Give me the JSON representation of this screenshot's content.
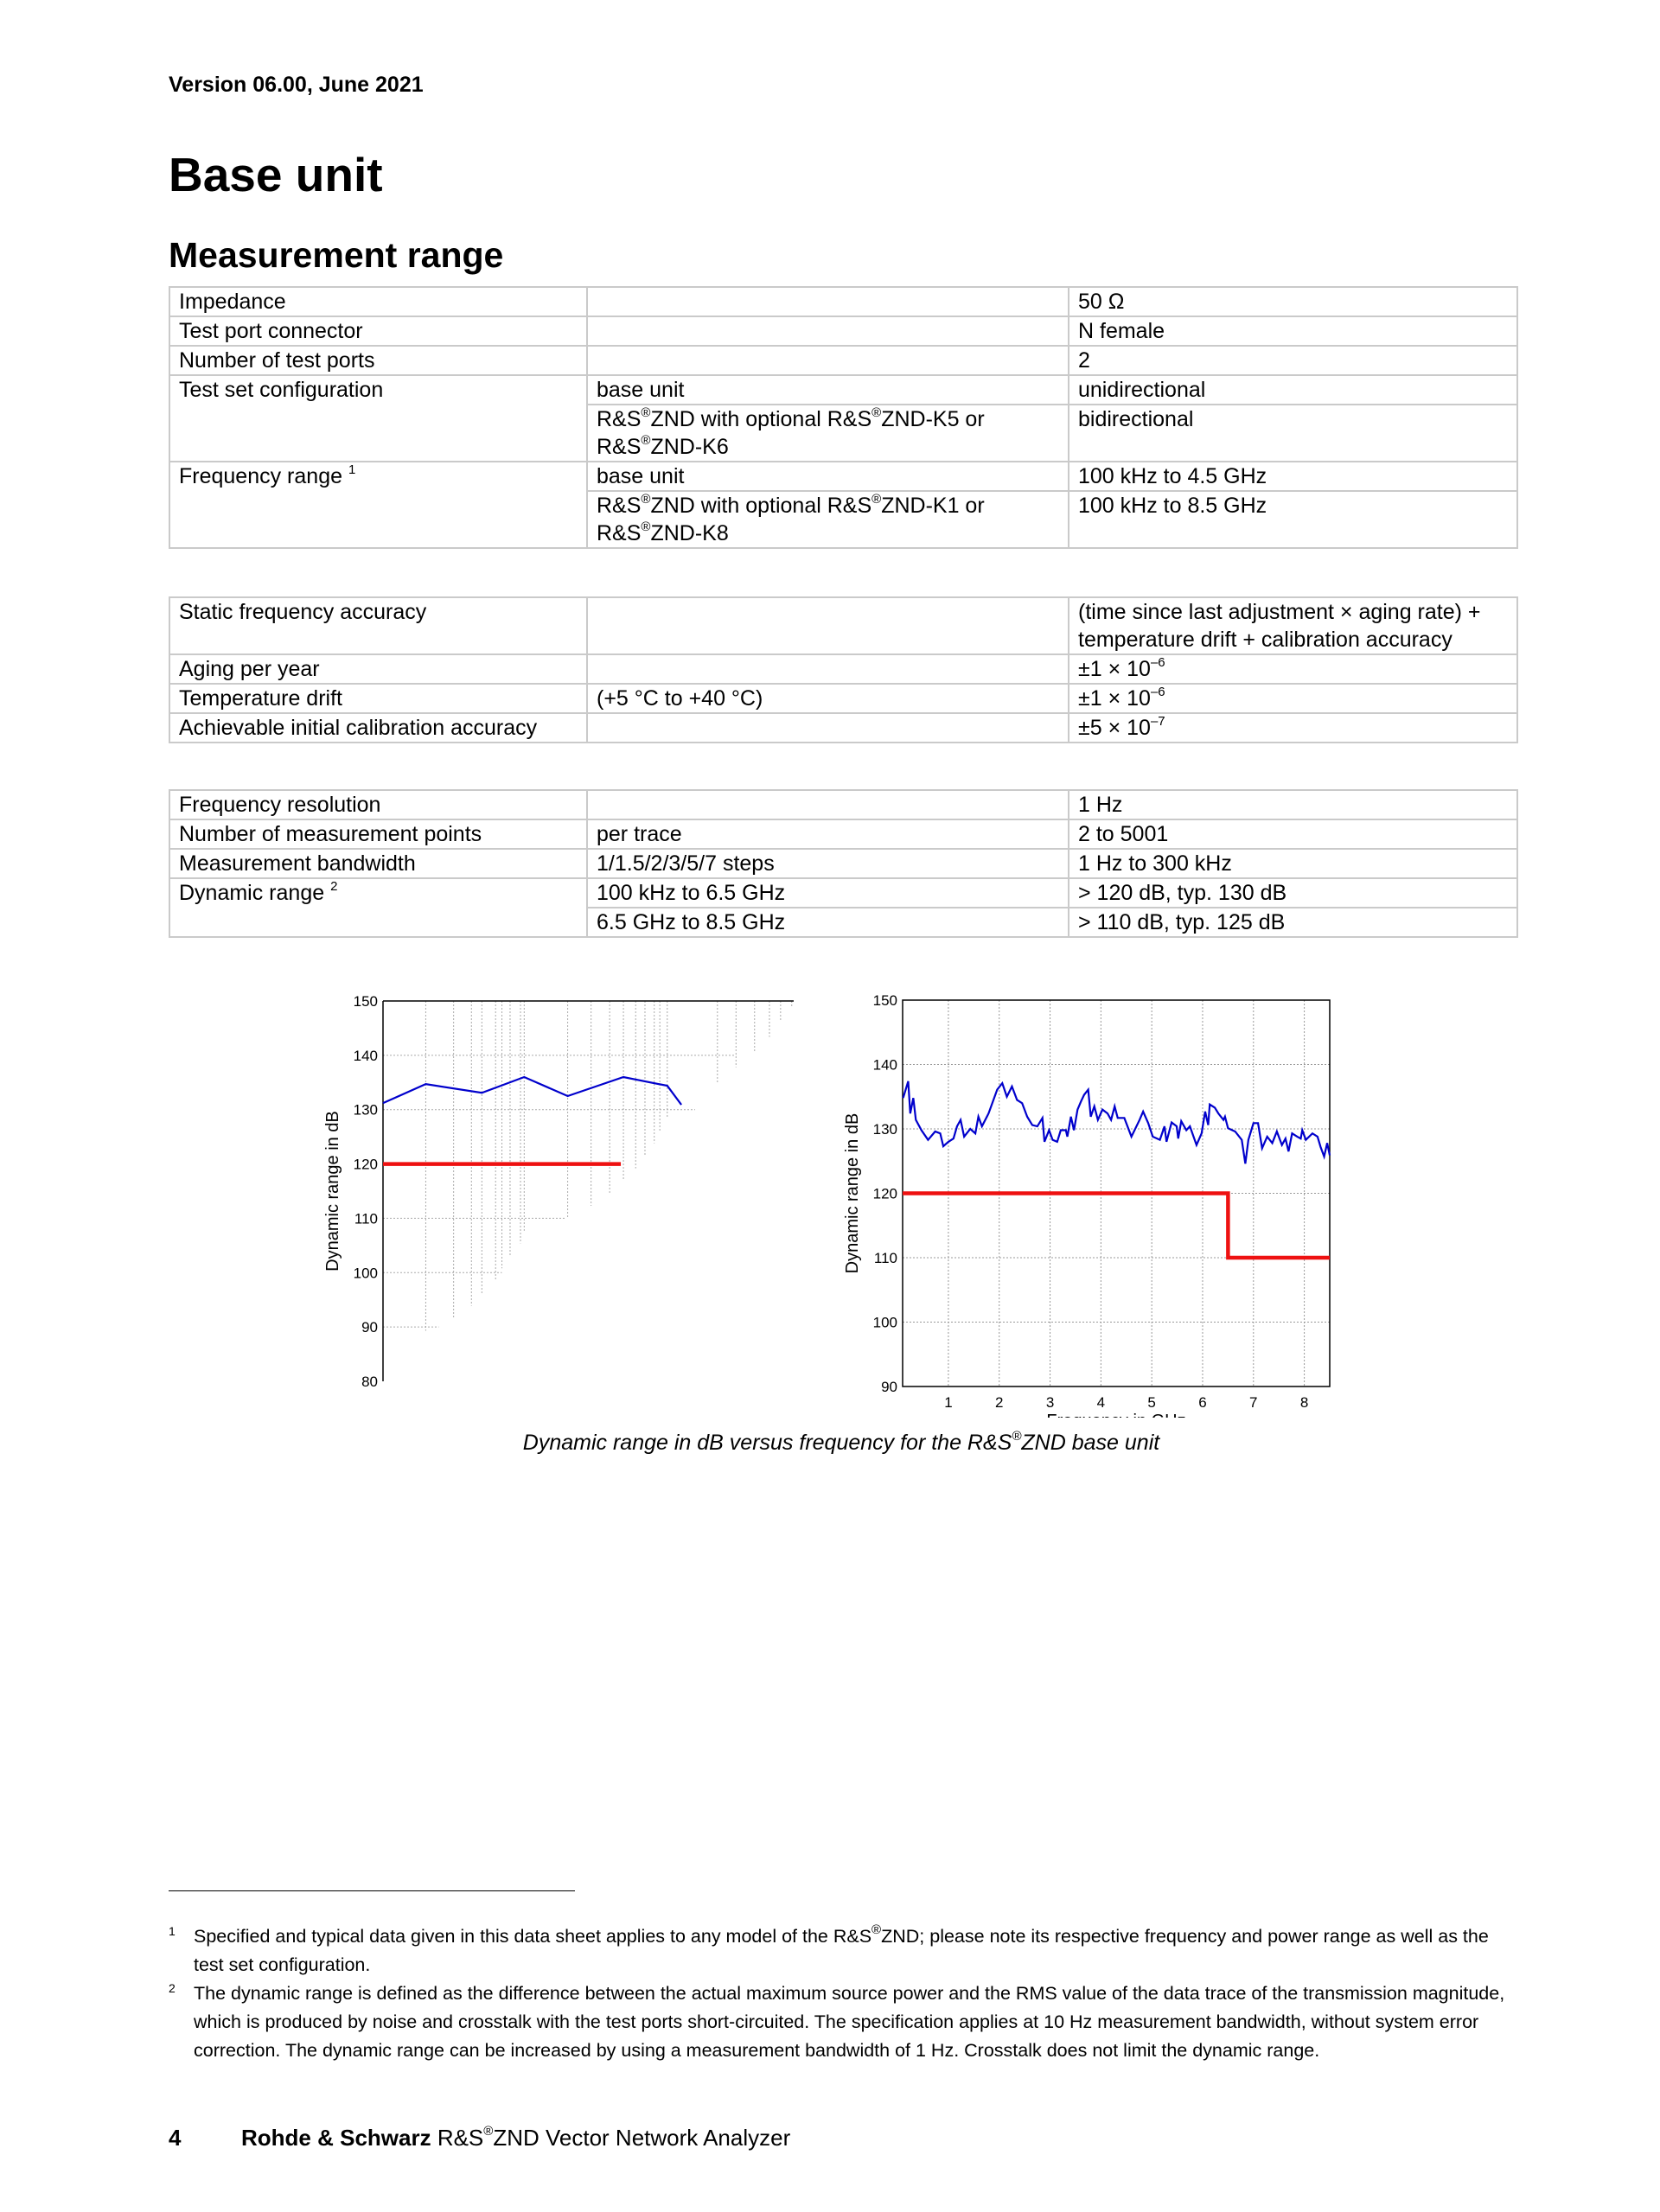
{
  "header": {
    "version": "Version 06.00, June 2021"
  },
  "page_title": "Base unit",
  "section_title": "Measurement range",
  "table1": {
    "rows": [
      {
        "param": "Impedance",
        "cond": "",
        "value": "50 Ω"
      },
      {
        "param": "Test port connector",
        "cond": "",
        "value": "N female"
      },
      {
        "param": "Number of test ports",
        "cond": "",
        "value": "2"
      },
      {
        "param": "Test set configuration",
        "cond": "base unit",
        "value": "unidirectional"
      },
      {
        "param": "",
        "cond": "R&S®ZND with optional R&S®ZND-K5 or R&S®ZND-K6",
        "value": "bidirectional"
      },
      {
        "param": "Frequency range",
        "param_note": "1",
        "cond": "base unit",
        "value": "100 kHz to 4.5 GHz"
      },
      {
        "param": "",
        "cond": "R&S®ZND with optional R&S®ZND-K1 or R&S®ZND-K8",
        "value": "100 kHz to 8.5 GHz"
      }
    ]
  },
  "table2": {
    "rows": [
      {
        "param": "Static frequency accuracy",
        "cond": "",
        "value": "(time since last adjustment × aging rate) + temperature drift + calibration accuracy"
      },
      {
        "param": "Aging per year",
        "cond": "",
        "value": "±1 × 10",
        "exp": "–6"
      },
      {
        "param": "Temperature drift",
        "cond": "(+5 °C to +40 °C)",
        "value": "±1 × 10",
        "exp": "–6"
      },
      {
        "param": "Achievable initial calibration accuracy",
        "cond": "",
        "value": "±5 × 10",
        "exp": "–7"
      }
    ]
  },
  "table3": {
    "rows": [
      {
        "param": "Frequency resolution",
        "cond": "",
        "value": "1 Hz"
      },
      {
        "param": "Number of measurement points",
        "cond": "per trace",
        "value": "2 to 5001"
      },
      {
        "param": "Measurement bandwidth",
        "cond": "1/1.5/2/3/5/7 steps",
        "value": "1 Hz to 300 kHz"
      },
      {
        "param": "Dynamic range",
        "param_note": "2",
        "cond": "100 kHz to 6.5 GHz",
        "value": "> 120 dB, typ. 130 dB"
      },
      {
        "param": "",
        "cond": "6.5 GHz to 8.5 GHz",
        "value": "> 110 dB, typ. 125 dB"
      }
    ]
  },
  "chart_data": [
    {
      "type": "line",
      "title": "",
      "xlabel": "",
      "ylabel": "Dynamic range in dB",
      "ylim": [
        80,
        150
      ],
      "yticks": [
        "150",
        "140",
        "130",
        "120",
        "110",
        "100",
        "90",
        "80"
      ],
      "xlim": [
        0.1,
        8.5
      ],
      "grid": true,
      "colors": {
        "typical": "#0000cc",
        "spec": "#ee1111"
      },
      "series": [
        {
          "x": [
            0.1,
            1.25,
            2.76,
            3.9,
            5.07,
            6.57,
            7.75,
            8.13
          ],
          "y": [
            131.2,
            134.7,
            133.1,
            136.0,
            132.5,
            136.0,
            134.4,
            130.9
          ]
        },
        {
          "x": [
            0.1,
            6.5
          ],
          "y": [
            120,
            120
          ]
        }
      ]
    },
    {
      "type": "line",
      "title": "",
      "xlabel": "Frequency in GHz",
      "ylabel": "Dynamic range in dB",
      "ylim": [
        90,
        150
      ],
      "xlim": [
        0.1,
        8.5
      ],
      "xticks": [
        "1",
        "2",
        "3",
        "4",
        "5",
        "6",
        "7",
        "8"
      ],
      "yticks": [
        "150",
        "140",
        "130",
        "120",
        "110",
        "100",
        "90"
      ],
      "grid": true,
      "colors": {
        "typical": "#0000cc",
        "spec": "#ee1111"
      },
      "series": [
        {
          "x": [
            0.11,
            0.21,
            0.25,
            0.31,
            0.36,
            0.47,
            0.6,
            0.74,
            0.84,
            0.9,
            1.0,
            1.1,
            1.17,
            1.24,
            1.31,
            1.43,
            1.53,
            1.59,
            1.66,
            1.79,
            1.96,
            2.06,
            2.15,
            2.25,
            2.35,
            2.45,
            2.55,
            2.65,
            2.75,
            2.85,
            2.89,
            2.98,
            3.05,
            3.14,
            3.21,
            3.31,
            3.34,
            3.41,
            3.47,
            3.54,
            3.61,
            3.67,
            3.75,
            3.8,
            3.87,
            3.94,
            4.03,
            4.13,
            4.2,
            4.27,
            4.33,
            4.46,
            4.6,
            4.76,
            4.83,
            4.93,
            5.02,
            5.16,
            5.25,
            5.29,
            5.39,
            5.49,
            5.52,
            5.58,
            5.68,
            5.75,
            5.88,
            5.98,
            6.05,
            6.11,
            6.14,
            6.24,
            6.31,
            6.41,
            6.44,
            6.5,
            6.64,
            6.77,
            6.84,
            6.9,
            7.0,
            7.09,
            7.17,
            7.27,
            7.37,
            7.46,
            7.56,
            7.63,
            7.69,
            7.76,
            7.86,
            7.93,
            7.96,
            8.03,
            8.16,
            8.26,
            8.32,
            8.39,
            8.45,
            8.5
          ],
          "y": [
            134.8,
            137.4,
            132.4,
            134.8,
            131.4,
            129.8,
            128.3,
            129.6,
            129.3,
            127.3,
            128,
            128.5,
            130.4,
            131.4,
            128.8,
            130,
            129.3,
            131.9,
            130.4,
            132.4,
            136.1,
            137.1,
            135,
            136.6,
            134.5,
            134,
            131.9,
            130.6,
            130.4,
            131.7,
            128,
            129.8,
            128.3,
            128,
            129.8,
            129.8,
            128.8,
            131.9,
            129.8,
            133,
            134.3,
            135.3,
            136.1,
            131.9,
            133.5,
            131.4,
            133,
            132.4,
            131.4,
            133.5,
            131.7,
            131.7,
            128.8,
            131.4,
            132.7,
            130.9,
            128.8,
            128.3,
            130.4,
            128,
            131,
            130.4,
            128.5,
            131.2,
            129.8,
            130.4,
            127.5,
            129.3,
            132.7,
            130.6,
            133.8,
            133.3,
            132.4,
            131.4,
            131.9,
            130.1,
            129.6,
            128.3,
            124.6,
            128.3,
            130.9,
            130.9,
            127,
            128.8,
            127.8,
            129.6,
            127.5,
            128.5,
            126.5,
            129.3,
            128.8,
            128.5,
            129.8,
            128.3,
            129.3,
            128.8,
            127.2,
            125.7,
            127.8,
            125.9
          ]
        },
        {
          "x": [
            0.1,
            6.5,
            6.5,
            8.5
          ],
          "y": [
            120,
            120,
            110,
            110
          ]
        }
      ]
    }
  ],
  "caption": "Dynamic range in dB versus frequency for the R&S®ZND base unit",
  "footnotes": [
    {
      "num": "1",
      "text": "Specified and typical data given in this data sheet applies to any model of the R&S®ZND; please note its respective frequency and power range as well as the test set configuration."
    },
    {
      "num": "2",
      "text": "The dynamic range is defined as the difference between the actual maximum source power and the RMS value of the data trace of the transmission magnitude, which is produced by noise and crosstalk with the test ports short-circuited. The specification applies at 10 Hz measurement bandwidth, without system error correction. The dynamic range can be increased by using a measurement bandwidth of 1 Hz. Crosstalk does not limit the dynamic range."
    }
  ],
  "footer": {
    "page": "4",
    "brand": "Rohde & Schwarz",
    "product": " R&S®ZND Vector Network Analyzer"
  }
}
